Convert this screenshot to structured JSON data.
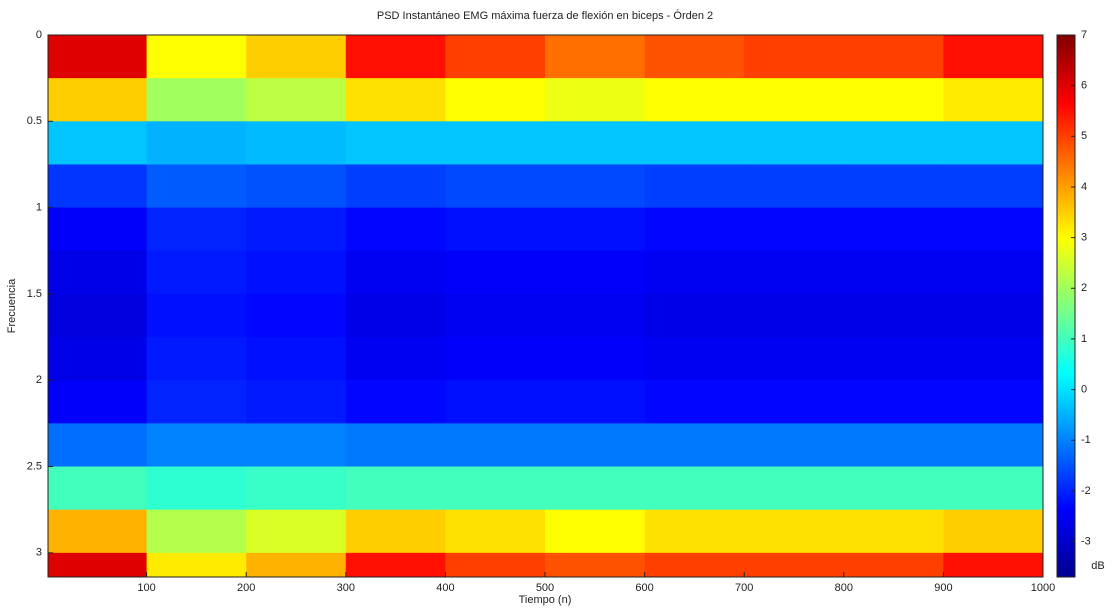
{
  "chart_data": {
    "type": "heatmap",
    "title": "PSD Instantáneo EMG máxima fuerza de flexión en biceps - Órden 2",
    "x_label": "Tiempo (n)",
    "y_label": "Frecuencia",
    "colorbar_label": "dB",
    "colormap": "jet",
    "x_edges": [
      1,
      100,
      200,
      300,
      400,
      500,
      600,
      700,
      800,
      900,
      1000
    ],
    "y_edges": [
      0,
      0.25,
      0.5,
      0.75,
      1,
      1.25,
      1.5,
      1.75,
      2,
      2.25,
      2.5,
      2.75,
      3,
      3.14
    ],
    "z": [
      [
        6,
        3,
        3.5,
        5.5,
        5,
        4.5,
        4.8,
        5,
        5,
        5.5
      ],
      [
        3.5,
        2,
        2.3,
        3.3,
        3,
        2.8,
        3,
        3,
        3,
        3.2
      ],
      [
        -0.3,
        -0.5,
        -0.4,
        -0.3,
        -0.3,
        -0.3,
        -0.3,
        -0.3,
        -0.3,
        -0.3
      ],
      [
        -1.8,
        -1.4,
        -1.5,
        -1.7,
        -1.6,
        -1.6,
        -1.7,
        -1.7,
        -1.7,
        -1.7
      ],
      [
        -2.4,
        -2,
        -2.1,
        -2.3,
        -2.2,
        -2.2,
        -2.3,
        -2.3,
        -2.3,
        -2.3
      ],
      [
        -2.6,
        -2.1,
        -2.2,
        -2.5,
        -2.4,
        -2.4,
        -2.5,
        -2.5,
        -2.5,
        -2.5
      ],
      [
        -2.7,
        -2.2,
        -2.3,
        -2.6,
        -2.5,
        -2.5,
        -2.6,
        -2.6,
        -2.6,
        -2.6
      ],
      [
        -2.6,
        -2.1,
        -2.2,
        -2.5,
        -2.4,
        -2.4,
        -2.5,
        -2.5,
        -2.5,
        -2.5
      ],
      [
        -2.4,
        -2,
        -2.1,
        -2.3,
        -2.2,
        -2.2,
        -2.3,
        -2.3,
        -2.3,
        -2.3
      ],
      [
        -1.2,
        -1,
        -1,
        -1.1,
        -1.1,
        -1.1,
        -1.1,
        -1.1,
        -1.1,
        -1.1
      ],
      [
        1,
        0.8,
        0.9,
        1,
        1,
        1,
        1,
        1,
        1,
        1
      ],
      [
        3.8,
        2.2,
        2.6,
        3.5,
        3.3,
        3,
        3.3,
        3.3,
        3.3,
        3.5
      ],
      [
        6,
        3.2,
        3.8,
        5.5,
        5,
        4.8,
        5,
        5,
        5,
        5.5
      ]
    ],
    "xlim": [
      1,
      1000
    ],
    "xticks": [
      100,
      200,
      300,
      400,
      500,
      600,
      700,
      800,
      900,
      1000
    ],
    "ylim": [
      0,
      3.14
    ],
    "yticks": [
      0,
      0.5,
      1,
      1.5,
      2,
      2.5,
      3
    ],
    "y_reversed": true,
    "clim": [
      -3.7,
      7
    ],
    "cticks": [
      -3,
      -2,
      -1,
      0,
      1,
      2,
      3,
      4,
      5,
      6,
      7
    ]
  }
}
